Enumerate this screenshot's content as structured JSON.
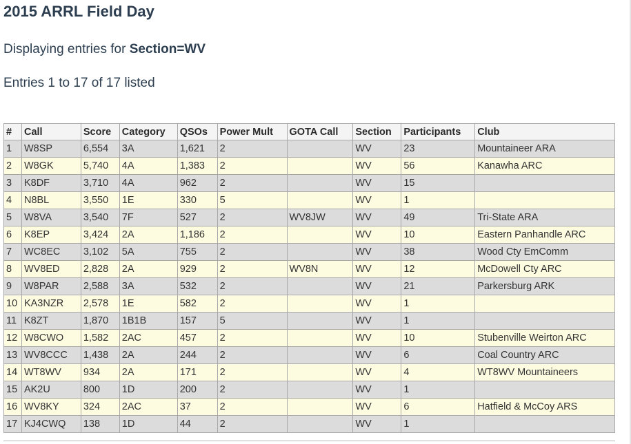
{
  "page": {
    "title": "2015 ARRL Field Day",
    "section_prefix": "Displaying entries for ",
    "section_filter": "Section=WV",
    "entries_text": "Entries 1 to 17 of 17 listed"
  },
  "table": {
    "headers": [
      "#",
      "Call",
      "Score",
      "Category",
      "QSOs",
      "Power Mult",
      "GOTA Call",
      "Section",
      "Participants",
      "Club"
    ],
    "rows": [
      {
        "num": "1",
        "call": "W8SP",
        "score": "6,554",
        "category": "3A",
        "qsos": "1,621",
        "power_mult": "2",
        "gota_call": "",
        "section": "WV",
        "participants": "23",
        "club": "Mountaineer ARA"
      },
      {
        "num": "2",
        "call": "W8GK",
        "score": "5,740",
        "category": "4A",
        "qsos": "1,383",
        "power_mult": "2",
        "gota_call": "",
        "section": "WV",
        "participants": "56",
        "club": "Kanawha ARC"
      },
      {
        "num": "3",
        "call": "K8DF",
        "score": "3,710",
        "category": "4A",
        "qsos": "962",
        "power_mult": "2",
        "gota_call": "",
        "section": "WV",
        "participants": "15",
        "club": ""
      },
      {
        "num": "4",
        "call": "N8BL",
        "score": "3,550",
        "category": "1E",
        "qsos": "330",
        "power_mult": "5",
        "gota_call": "",
        "section": "WV",
        "participants": "1",
        "club": ""
      },
      {
        "num": "5",
        "call": "W8VA",
        "score": "3,540",
        "category": "7F",
        "qsos": "527",
        "power_mult": "2",
        "gota_call": "WV8JW",
        "section": "WV",
        "participants": "49",
        "club": "Tri-State ARA"
      },
      {
        "num": "6",
        "call": "K8EP",
        "score": "3,424",
        "category": "2A",
        "qsos": "1,186",
        "power_mult": "2",
        "gota_call": "",
        "section": "WV",
        "participants": "10",
        "club": "Eastern Panhandle ARC"
      },
      {
        "num": "7",
        "call": "WC8EC",
        "score": "3,102",
        "category": "5A",
        "qsos": "755",
        "power_mult": "2",
        "gota_call": "",
        "section": "WV",
        "participants": "38",
        "club": "Wood Cty EmComm"
      },
      {
        "num": "8",
        "call": "WV8ED",
        "score": "2,828",
        "category": "2A",
        "qsos": "929",
        "power_mult": "2",
        "gota_call": "WV8N",
        "section": "WV",
        "participants": "12",
        "club": "McDowell Cty ARC"
      },
      {
        "num": "9",
        "call": "W8PAR",
        "score": "2,588",
        "category": "3A",
        "qsos": "532",
        "power_mult": "2",
        "gota_call": "",
        "section": "WV",
        "participants": "21",
        "club": "Parkersburg ARK"
      },
      {
        "num": "10",
        "call": "KA3NZR",
        "score": "2,578",
        "category": "1E",
        "qsos": "582",
        "power_mult": "2",
        "gota_call": "",
        "section": "WV",
        "participants": "1",
        "club": ""
      },
      {
        "num": "11",
        "call": "K8ZT",
        "score": "1,870",
        "category": "1B1B",
        "qsos": "157",
        "power_mult": "5",
        "gota_call": "",
        "section": "WV",
        "participants": "1",
        "club": ""
      },
      {
        "num": "12",
        "call": "W8CWO",
        "score": "1,582",
        "category": "2AC",
        "qsos": "457",
        "power_mult": "2",
        "gota_call": "",
        "section": "WV",
        "participants": "10",
        "club": "Stubenville Weirton ARC"
      },
      {
        "num": "13",
        "call": "WV8CCC",
        "score": "1,438",
        "category": "2A",
        "qsos": "244",
        "power_mult": "2",
        "gota_call": "",
        "section": "WV",
        "participants": "6",
        "club": "Coal Country ARC"
      },
      {
        "num": "14",
        "call": "WT8WV",
        "score": "934",
        "category": "2A",
        "qsos": "171",
        "power_mult": "2",
        "gota_call": "",
        "section": "WV",
        "participants": "4",
        "club": "WT8WV Mountaineers"
      },
      {
        "num": "15",
        "call": "AK2U",
        "score": "800",
        "category": "1D",
        "qsos": "200",
        "power_mult": "2",
        "gota_call": "",
        "section": "WV",
        "participants": "1",
        "club": ""
      },
      {
        "num": "16",
        "call": "WV8KY",
        "score": "324",
        "category": "2AC",
        "qsos": "37",
        "power_mult": "2",
        "gota_call": "",
        "section": "WV",
        "participants": "6",
        "club": "Hatfield & McCoy ARS"
      },
      {
        "num": "17",
        "call": "KJ4CWQ",
        "score": "138",
        "category": "1D",
        "qsos": "44",
        "power_mult": "2",
        "gota_call": "",
        "section": "WV",
        "participants": "1",
        "club": ""
      }
    ]
  },
  "colors": {
    "heading": "#2c3e50",
    "row_odd": "#dcdcdc",
    "row_even": "#fdfce0",
    "header_bg": "#f4f4f4",
    "border": "#a8a8a8"
  }
}
